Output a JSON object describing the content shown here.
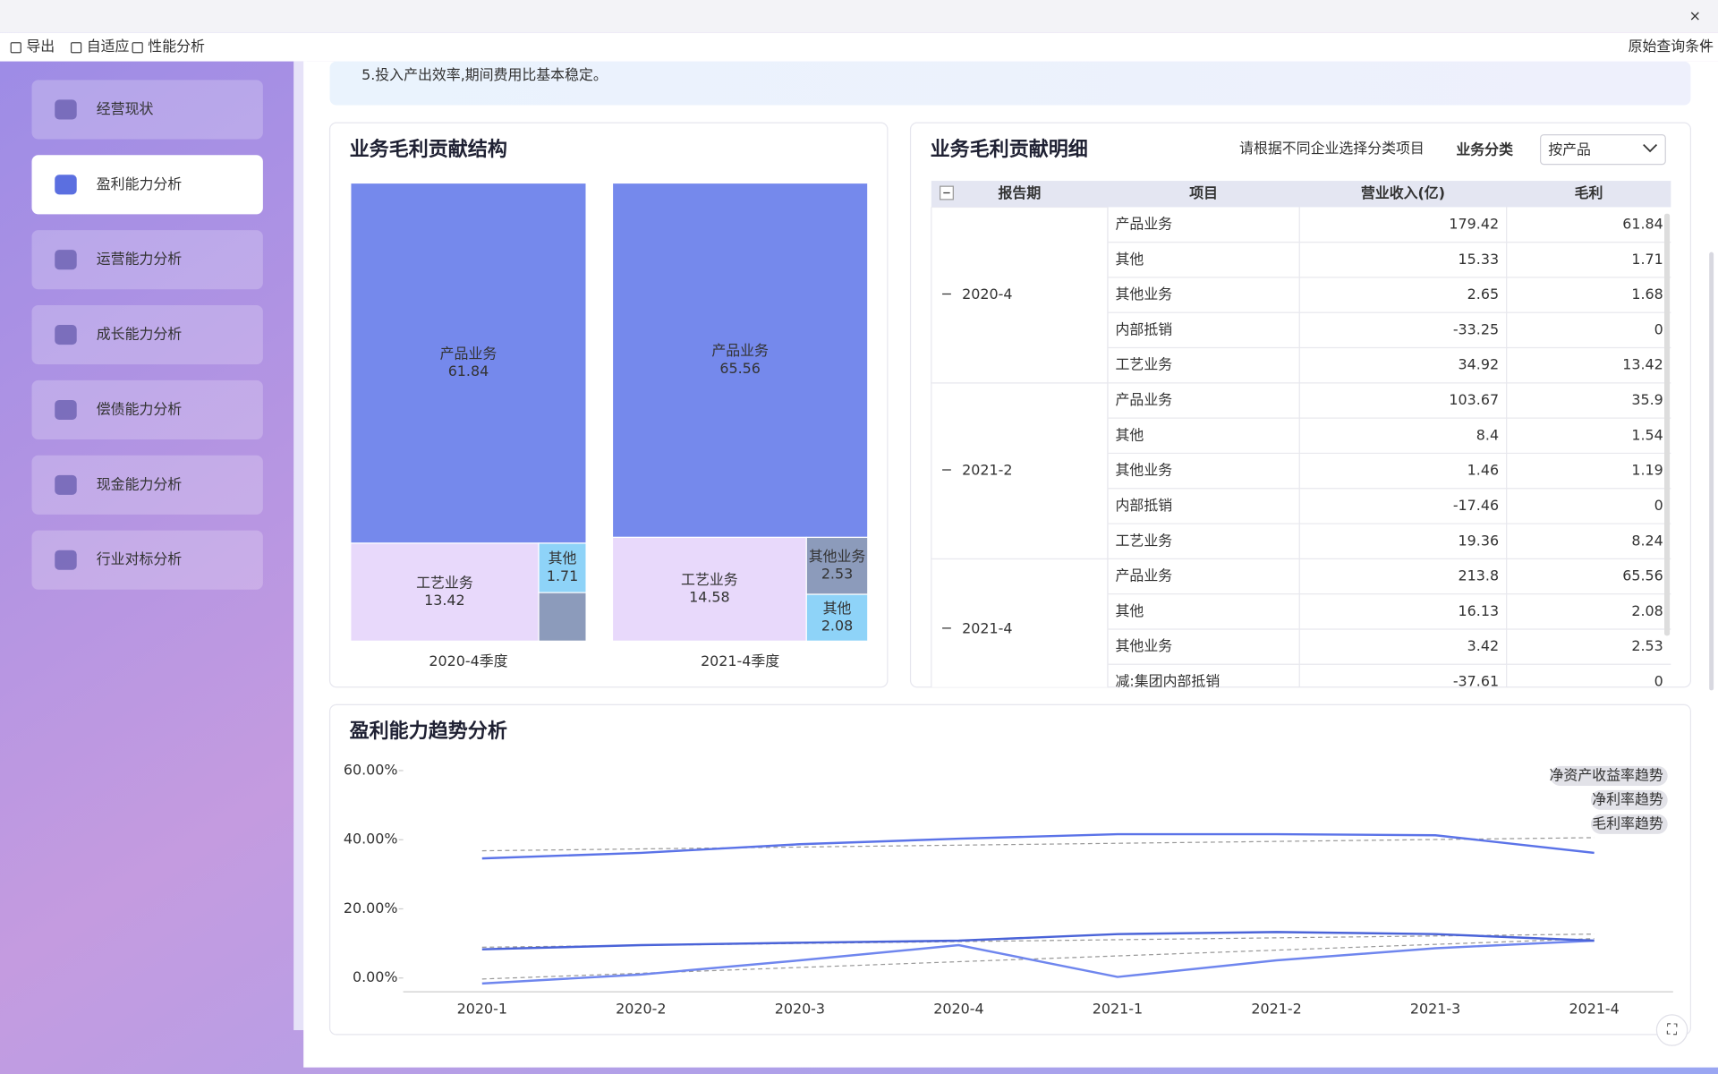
{
  "window": {
    "toolbar": [
      "导出",
      "自适应",
      "性能分析"
    ],
    "query": "原始查询条件"
  },
  "sidebar": {
    "items": [
      "经营现状",
      "盈利能力分析",
      "运营能力分析",
      "成长能力分析",
      "偿债能力分析",
      "现金能力分析",
      "行业对标分析"
    ],
    "active": 1
  },
  "notice": "5.投入产出效率,期间费用比基本稳定。",
  "detail": {
    "title": "业务毛利贡献明细",
    "hint": "请根据不同企业选择分类项目",
    "filter_label": "业务分类",
    "filter_value": "按产品",
    "columns": [
      "报告期",
      "项目",
      "营业收入(亿)",
      "毛利"
    ],
    "groups": [
      {
        "period": "2020-4",
        "rows": [
          [
            "产品业务",
            179.42,
            61.84
          ],
          [
            "其他",
            15.33,
            1.71
          ],
          [
            "其他业务",
            2.65,
            1.68
          ],
          [
            "内部抵销",
            -33.25,
            0
          ],
          [
            "工艺业务",
            34.92,
            13.42
          ]
        ]
      },
      {
        "period": "2021-2",
        "rows": [
          [
            "产品业务",
            103.67,
            35.9
          ],
          [
            "其他",
            8.4,
            1.54
          ],
          [
            "其他业务",
            1.46,
            1.19
          ],
          [
            "内部抵销",
            -17.46,
            0
          ],
          [
            "工艺业务",
            19.36,
            8.24
          ]
        ]
      },
      {
        "period": "2021-4",
        "rows": [
          [
            "产品业务",
            213.8,
            65.56
          ],
          [
            "其他",
            16.13,
            2.08
          ],
          [
            "其他业务",
            3.42,
            2.53
          ],
          [
            "减:集团内部抵销",
            -37.61,
            0
          ]
        ]
      }
    ]
  },
  "chart_data": [
    {
      "type": "treemap",
      "title": "业务毛利贡献结构",
      "caption": "2020-4季度",
      "categories": [
        "产品业务",
        "工艺业务",
        "其他",
        null
      ],
      "values": [
        61.84,
        13.42,
        1.71,
        1.68
      ],
      "colors": [
        "#7589ec",
        "#e8d9fb",
        "#8ed3f8",
        "#8c9bbb"
      ]
    },
    {
      "type": "treemap",
      "caption": "2021-4季度",
      "categories": [
        "产品业务",
        "工艺业务",
        "其他业务",
        "其他"
      ],
      "values": [
        65.56,
        14.58,
        2.53,
        2.08
      ],
      "colors": [
        "#7589ec",
        "#e8d9fb",
        "#8c9bbb",
        "#8ed3f8"
      ]
    },
    {
      "type": "line",
      "title": "盈利能力趋势分析",
      "categories": [
        "2020-1",
        "2020-2",
        "2020-3",
        "2020-4",
        "2021-1",
        "2021-2",
        "2021-3",
        "2021-4"
      ],
      "ylim": [
        -4,
        61
      ],
      "yticks": [
        {
          "value": 0,
          "label": "0.00%"
        },
        {
          "value": 20,
          "label": "20.00%"
        },
        {
          "value": 40,
          "label": "40.00%"
        },
        {
          "value": 60,
          "label": "60.00%"
        }
      ],
      "legend": "top-right",
      "series": [
        {
          "name": "净资产收益率趋势",
          "color": "#6f86ee",
          "values": [
            -1.6,
            1.0,
            5.1,
            9.5,
            0.3,
            5.1,
            8.6,
            10.8
          ],
          "trend": [
            -0.3,
            11.4
          ]
        },
        {
          "name": "净利率趋势",
          "color": "#4a63d8",
          "values": [
            8.3,
            9.5,
            10.2,
            10.8,
            12.7,
            13.3,
            12.7,
            10.8
          ],
          "trend": [
            8.9,
            12.7
          ]
        },
        {
          "name": "毛利率趋势",
          "color": "#5b73e8",
          "values": [
            34.6,
            36.2,
            38.7,
            40.3,
            41.6,
            41.6,
            41.3,
            36.2
          ],
          "trend": [
            36.8,
            40.6
          ]
        }
      ]
    }
  ]
}
